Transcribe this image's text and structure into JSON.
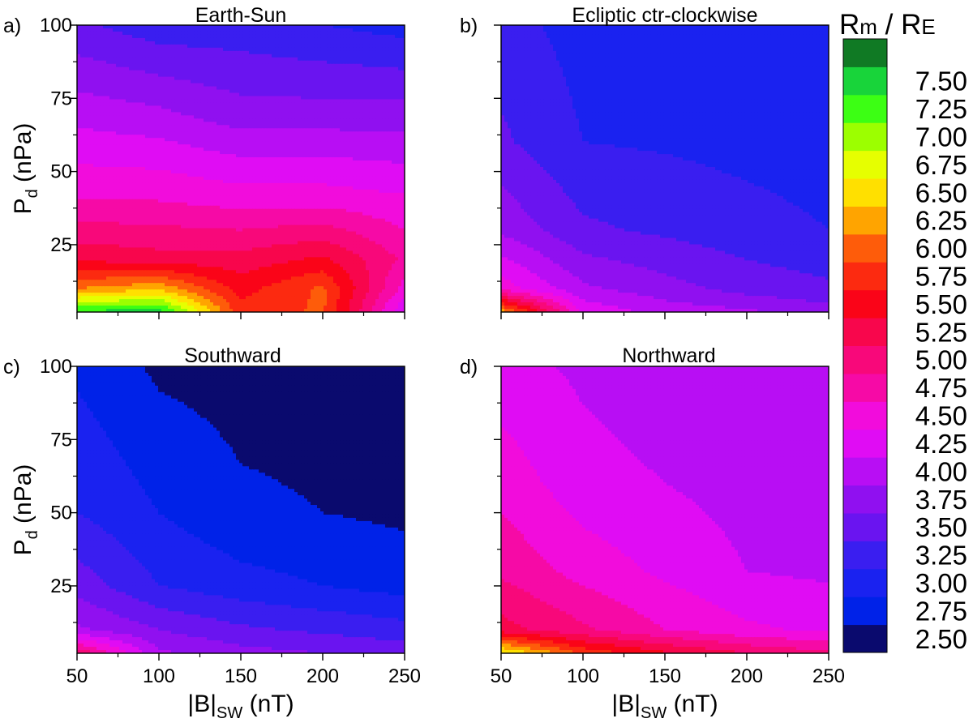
{
  "chart_data": {
    "type": "heatmap",
    "subtype": "filled-contour",
    "colorbar": {
      "title_main": "R",
      "title_main_sub": "m",
      "title_sep": " / ",
      "title_ref": "R",
      "title_ref_sub": "E",
      "levels": [
        2.5,
        2.75,
        3.0,
        3.25,
        3.5,
        3.75,
        4.0,
        4.25,
        4.5,
        4.75,
        5.0,
        5.25,
        5.5,
        5.75,
        6.0,
        6.25,
        6.5,
        6.75,
        7.0,
        7.25,
        7.5
      ],
      "colors": [
        "#0a0a6e",
        "#0022e8",
        "#1a22f0",
        "#3a1ef0",
        "#6a14f0",
        "#9010f0",
        "#b80ef4",
        "#e00cf4",
        "#f20cdc",
        "#f60aa6",
        "#f8087a",
        "#f8064c",
        "#fa0418",
        "#fc2a10",
        "#fe5c0a",
        "#ffa400",
        "#ffe000",
        "#e6ff00",
        "#9cff00",
        "#3cff14",
        "#18d43a",
        "#107a24"
      ],
      "tick_labels": [
        "2.50",
        "2.75",
        "3.00",
        "3.25",
        "3.50",
        "3.75",
        "4.00",
        "4.25",
        "4.50",
        "4.75",
        "5.00",
        "5.25",
        "5.50",
        "5.75",
        "6.00",
        "6.25",
        "6.50",
        "6.75",
        "7.00",
        "7.25",
        "7.50"
      ]
    },
    "x_ticks": [
      50,
      100,
      150,
      200,
      250
    ],
    "y_ticks": [
      25,
      50,
      75,
      100
    ],
    "xlim": [
      50,
      250
    ],
    "ylim": [
      2,
      100
    ],
    "xlabel_main": "|B|",
    "xlabel_sub": "SW",
    "xlabel_unit": " (nT)",
    "ylabel_main": "P",
    "ylabel_sub": "d",
    "ylabel_unit": " (nPa)",
    "panels": [
      {
        "id": "a",
        "label": "a)",
        "title": "Earth-Sun",
        "x": [
          50,
          100,
          150,
          200,
          250
        ],
        "y": [
          2,
          10,
          20,
          40,
          70,
          100
        ],
        "z": [
          [
            7.3,
            7.4,
            5.6,
            5.8,
            4.0
          ],
          [
            6.0,
            6.2,
            5.4,
            5.8,
            4.4
          ],
          [
            5.2,
            5.1,
            5.1,
            5.3,
            4.7
          ],
          [
            4.5,
            4.5,
            4.4,
            4.4,
            4.3
          ],
          [
            3.9,
            3.8,
            3.6,
            3.6,
            3.6
          ],
          [
            3.3,
            3.1,
            3.1,
            3.0,
            2.9
          ]
        ]
      },
      {
        "id": "b",
        "label": "b)",
        "title": "Ecliptic ctr-clockwise",
        "x": [
          50,
          100,
          150,
          200,
          250
        ],
        "y": [
          2,
          10,
          30,
          60,
          100
        ],
        "z": [
          [
            6.2,
            4.2,
            3.9,
            3.8,
            3.6
          ],
          [
            4.4,
            3.8,
            3.6,
            3.4,
            3.3
          ],
          [
            3.7,
            3.3,
            3.2,
            3.1,
            3.0
          ],
          [
            3.3,
            3.0,
            2.97,
            2.92,
            2.88
          ],
          [
            3.1,
            2.9,
            2.85,
            2.85,
            2.85
          ]
        ]
      },
      {
        "id": "c",
        "label": "c)",
        "title": "Southward",
        "x": [
          50,
          100,
          150,
          200,
          250
        ],
        "y": [
          2,
          10,
          25,
          50,
          100
        ],
        "z": [
          [
            5.0,
            3.8,
            3.6,
            3.5,
            3.4
          ],
          [
            3.8,
            3.5,
            3.3,
            3.2,
            3.1
          ],
          [
            3.4,
            3.0,
            2.85,
            2.75,
            2.65
          ],
          [
            3.0,
            2.75,
            2.55,
            2.5,
            2.45
          ],
          [
            2.7,
            2.45,
            2.4,
            2.4,
            2.4
          ]
        ]
      },
      {
        "id": "d",
        "label": "d)",
        "title": "Northward",
        "x": [
          50,
          100,
          150,
          200,
          250
        ],
        "y": [
          2,
          10,
          30,
          60,
          100
        ],
        "z": [
          [
            6.6,
            5.7,
            5.3,
            5.0,
            4.8
          ],
          [
            5.1,
            4.8,
            4.5,
            4.3,
            4.2
          ],
          [
            4.7,
            4.4,
            4.2,
            4.0,
            3.95
          ],
          [
            4.4,
            4.1,
            4.0,
            3.9,
            3.85
          ],
          [
            4.1,
            3.95,
            3.85,
            3.8,
            3.75
          ]
        ]
      }
    ]
  }
}
